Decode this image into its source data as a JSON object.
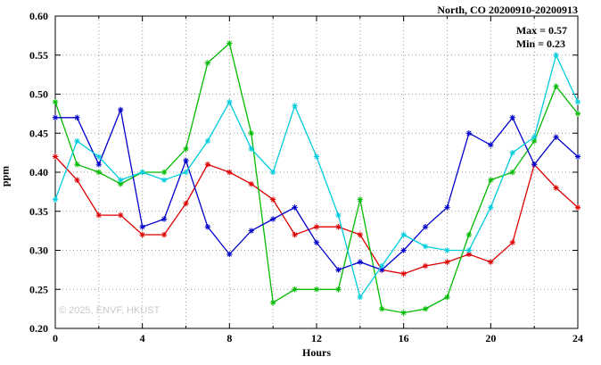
{
  "title": "North, CO 20200910-20200913",
  "annotation": {
    "max_label": "Max = 0.57",
    "min_label": "Min = 0.23"
  },
  "watermark": "© 2025, ENVF, HKUST",
  "chart_data": {
    "type": "line",
    "title": "North, CO 20200910-20200913",
    "xlabel": "Hours",
    "ylabel": "ppm",
    "xlim": [
      0,
      24
    ],
    "ylim": [
      0.2,
      0.6
    ],
    "xticks_major": [
      0,
      4,
      8,
      12,
      16,
      20,
      24
    ],
    "xgrid_step": 2,
    "ytick_step": 0.05,
    "grid": true,
    "legend_position": "none",
    "x": [
      0,
      1,
      2,
      3,
      4,
      5,
      6,
      7,
      8,
      9,
      10,
      11,
      12,
      13,
      14,
      15,
      16,
      17,
      18,
      19,
      20,
      21,
      22,
      23,
      24
    ],
    "series": [
      {
        "name": "series-red",
        "color": "#dd0000",
        "values": [
          0.42,
          0.39,
          0.345,
          0.345,
          0.32,
          0.32,
          0.36,
          0.41,
          0.4,
          0.385,
          0.365,
          0.32,
          0.33,
          0.33,
          0.32,
          0.275,
          0.27,
          0.28,
          0.285,
          0.295,
          0.285,
          0.31,
          0.41,
          0.38,
          0.355
        ]
      },
      {
        "name": "series-green",
        "color": "#00bb00",
        "values": [
          0.49,
          0.41,
          0.4,
          0.385,
          0.4,
          0.4,
          0.43,
          0.54,
          0.565,
          0.45,
          0.233,
          0.25,
          0.25,
          0.25,
          0.365,
          0.225,
          0.22,
          0.225,
          0.24,
          0.32,
          0.39,
          0.4,
          0.44,
          0.51,
          0.475
        ]
      },
      {
        "name": "series-blue",
        "color": "#0000cc",
        "values": [
          0.47,
          0.47,
          0.41,
          0.48,
          0.33,
          0.34,
          0.415,
          0.33,
          0.295,
          0.325,
          0.34,
          0.355,
          0.31,
          0.275,
          0.285,
          0.275,
          0.3,
          0.33,
          0.355,
          0.45,
          0.435,
          0.47,
          0.41,
          0.445,
          0.42
        ]
      },
      {
        "name": "series-cyan",
        "color": "#00ccdd",
        "values": [
          0.365,
          0.44,
          0.42,
          0.39,
          0.4,
          0.39,
          0.4,
          0.44,
          0.49,
          0.43,
          0.4,
          0.485,
          0.42,
          0.345,
          0.24,
          0.28,
          0.32,
          0.305,
          0.3,
          0.3,
          0.355,
          0.425,
          0.445,
          0.55,
          0.49
        ]
      }
    ]
  }
}
